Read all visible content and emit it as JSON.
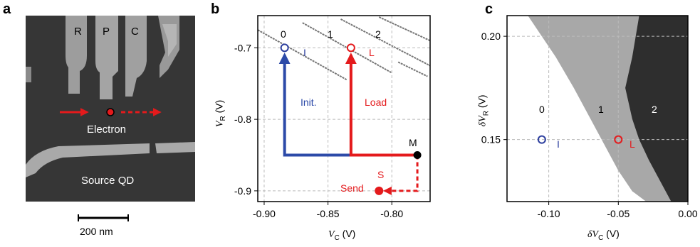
{
  "panel_a": {
    "letter": "a",
    "gate_labels": [
      "R",
      "P",
      "C"
    ],
    "electron_label": "Electron",
    "source_label": "Source QD",
    "scalebar_label": "200 nm",
    "colors": {
      "arrow": "#e41a1c",
      "sem_bg": "#3a3a3a",
      "gate": "#a8a8a8"
    }
  },
  "panel_b": {
    "letter": "b",
    "xlabel_main": "V",
    "xlabel_sub": "C",
    "xlabel_unit": " (V)",
    "ylabel_main": "V",
    "ylabel_sub": "R",
    "ylabel_unit": " (V)",
    "region_labels": [
      "0",
      "1",
      "2"
    ],
    "points": [
      {
        "label": "I",
        "x": -0.884,
        "y": -0.7,
        "color": "#2c3e9e"
      },
      {
        "label": "L",
        "x": -0.832,
        "y": -0.7,
        "color": "#e41a1c"
      },
      {
        "label": "M",
        "x": -0.78,
        "y": -0.85,
        "color": "#000000"
      },
      {
        "label": "S",
        "x": -0.81,
        "y": -0.9,
        "color": "#e41a1c"
      }
    ],
    "arrow_labels": {
      "init": "Init.",
      "load": "Load",
      "send": "Send"
    },
    "colors": {
      "init": "#2c4aa8",
      "load": "#e41a1c"
    }
  },
  "panel_c": {
    "letter": "c",
    "xlabel_main": "δV",
    "xlabel_sub": "C",
    "xlabel_unit": " (V)",
    "ylabel_main": "δV",
    "ylabel_sub": "R",
    "ylabel_unit": " (V)",
    "region_labels": [
      "0",
      "1",
      "2"
    ],
    "points": [
      {
        "label": "I",
        "x": -0.105,
        "y": 0.15,
        "color": "#2c3e9e"
      },
      {
        "label": "L",
        "x": -0.05,
        "y": 0.15,
        "color": "#e41a1c"
      }
    ]
  },
  "chart_data": [
    {
      "type": "line",
      "title": "",
      "xlabel": "V_C (V)",
      "ylabel": "V_R (V)",
      "xlim": [
        -0.905,
        -0.77
      ],
      "ylim": [
        -0.915,
        -0.655
      ],
      "xticks": [
        "-0.90",
        "-0.85",
        "-0.80"
      ],
      "yticks": [
        "-0.7",
        "-0.8",
        "-0.9"
      ],
      "grid": true,
      "series": [
        {
          "name": "Init.",
          "x": [
            -0.78,
            -0.884,
            -0.884
          ],
          "y": [
            -0.85,
            -0.85,
            -0.7
          ]
        },
        {
          "name": "Load",
          "x": [
            -0.78,
            -0.832,
            -0.832
          ],
          "y": [
            -0.85,
            -0.85,
            -0.7
          ]
        },
        {
          "name": "Send",
          "x": [
            -0.78,
            -0.78,
            -0.81
          ],
          "y": [
            -0.85,
            -0.9,
            -0.9
          ]
        }
      ]
    },
    {
      "type": "heatmap",
      "title": "",
      "xlabel": "δV_C (V)",
      "ylabel": "δV_R (V)",
      "xlim": [
        -0.13,
        0.0
      ],
      "ylim": [
        0.12,
        0.21
      ],
      "xticks": [
        "-0.10",
        "-0.05",
        "0.00"
      ],
      "yticks": [
        "0.20",
        "0.15"
      ],
      "grid": true,
      "regions": [
        "0",
        "1",
        "2"
      ]
    }
  ]
}
